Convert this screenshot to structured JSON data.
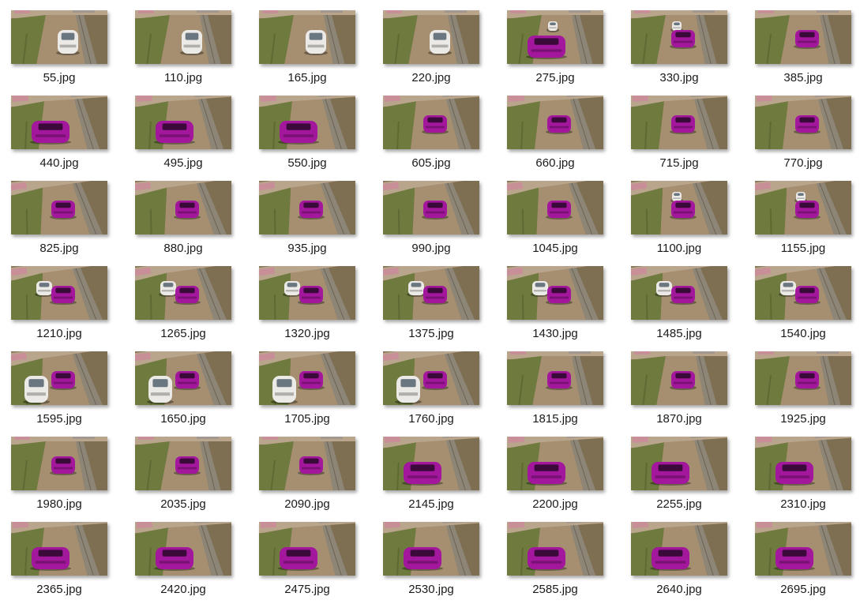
{
  "files": [
    {
      "name": "55.jpg",
      "white_car": "center",
      "pink_car": "none",
      "angle": "rear"
    },
    {
      "name": "110.jpg",
      "white_car": "center",
      "pink_car": "none",
      "angle": "rear"
    },
    {
      "name": "165.jpg",
      "white_car": "center",
      "pink_car": "none",
      "angle": "rear"
    },
    {
      "name": "220.jpg",
      "white_car": "center",
      "pink_car": "none",
      "angle": "rear"
    },
    {
      "name": "275.jpg",
      "white_car": "far",
      "pink_car": "near",
      "angle": "rear"
    },
    {
      "name": "330.jpg",
      "white_car": "far",
      "pink_car": "mid",
      "angle": "rear"
    },
    {
      "name": "385.jpg",
      "white_car": "none",
      "pink_car": "mid",
      "angle": "rear"
    },
    {
      "name": "440.jpg",
      "white_car": "none",
      "pink_car": "near",
      "angle": "side"
    },
    {
      "name": "495.jpg",
      "white_car": "none",
      "pink_car": "near",
      "angle": "side"
    },
    {
      "name": "550.jpg",
      "white_car": "none",
      "pink_car": "near",
      "angle": "side"
    },
    {
      "name": "605.jpg",
      "white_car": "none",
      "pink_car": "mid",
      "angle": "side"
    },
    {
      "name": "660.jpg",
      "white_car": "none",
      "pink_car": "mid",
      "angle": "side"
    },
    {
      "name": "715.jpg",
      "white_car": "none",
      "pink_car": "mid",
      "angle": "side"
    },
    {
      "name": "770.jpg",
      "white_car": "none",
      "pink_car": "mid",
      "angle": "side"
    },
    {
      "name": "825.jpg",
      "white_car": "none",
      "pink_car": "mid",
      "angle": "tilt"
    },
    {
      "name": "880.jpg",
      "white_car": "none",
      "pink_car": "mid",
      "angle": "tilt"
    },
    {
      "name": "935.jpg",
      "white_car": "none",
      "pink_car": "mid",
      "angle": "tilt"
    },
    {
      "name": "990.jpg",
      "white_car": "none",
      "pink_car": "mid",
      "angle": "tilt"
    },
    {
      "name": "1045.jpg",
      "white_car": "none",
      "pink_car": "mid",
      "angle": "tilt"
    },
    {
      "name": "1100.jpg",
      "white_car": "far",
      "pink_car": "mid",
      "angle": "tilt"
    },
    {
      "name": "1155.jpg",
      "white_car": "far",
      "pink_car": "mid",
      "angle": "tilt"
    },
    {
      "name": "1210.jpg",
      "white_car": "left",
      "pink_car": "mid",
      "angle": "tilt"
    },
    {
      "name": "1265.jpg",
      "white_car": "left",
      "pink_car": "mid",
      "angle": "tilt"
    },
    {
      "name": "1320.jpg",
      "white_car": "left",
      "pink_car": "mid",
      "angle": "tilt"
    },
    {
      "name": "1375.jpg",
      "white_car": "left",
      "pink_car": "mid",
      "angle": "tilt"
    },
    {
      "name": "1430.jpg",
      "white_car": "left",
      "pink_car": "mid",
      "angle": "tilt"
    },
    {
      "name": "1485.jpg",
      "white_car": "left",
      "pink_car": "mid",
      "angle": "tilt"
    },
    {
      "name": "1540.jpg",
      "white_car": "left",
      "pink_car": "mid",
      "angle": "tilt"
    },
    {
      "name": "1595.jpg",
      "white_car": "near-left",
      "pink_car": "mid",
      "angle": "tilt"
    },
    {
      "name": "1650.jpg",
      "white_car": "near-left",
      "pink_car": "mid",
      "angle": "tilt"
    },
    {
      "name": "1705.jpg",
      "white_car": "near-left",
      "pink_car": "mid",
      "angle": "tilt"
    },
    {
      "name": "1760.jpg",
      "white_car": "near-left",
      "pink_car": "mid",
      "angle": "tilt"
    },
    {
      "name": "1815.jpg",
      "white_car": "none",
      "pink_car": "mid",
      "angle": "rear"
    },
    {
      "name": "1870.jpg",
      "white_car": "none",
      "pink_car": "mid",
      "angle": "rear"
    },
    {
      "name": "1925.jpg",
      "white_car": "none",
      "pink_car": "mid",
      "angle": "rear"
    },
    {
      "name": "1980.jpg",
      "white_car": "none",
      "pink_car": "mid",
      "angle": "rear"
    },
    {
      "name": "2035.jpg",
      "white_car": "none",
      "pink_car": "mid",
      "angle": "rear"
    },
    {
      "name": "2090.jpg",
      "white_car": "none",
      "pink_car": "mid",
      "angle": "rear"
    },
    {
      "name": "2145.jpg",
      "white_car": "none",
      "pink_car": "near",
      "angle": "side"
    },
    {
      "name": "2200.jpg",
      "white_car": "none",
      "pink_car": "near",
      "angle": "side"
    },
    {
      "name": "2255.jpg",
      "white_car": "none",
      "pink_car": "near",
      "angle": "side"
    },
    {
      "name": "2310.jpg",
      "white_car": "none",
      "pink_car": "near",
      "angle": "side"
    },
    {
      "name": "2365.jpg",
      "white_car": "none",
      "pink_car": "near",
      "angle": "side"
    },
    {
      "name": "2420.jpg",
      "white_car": "none",
      "pink_car": "near",
      "angle": "side"
    },
    {
      "name": "2475.jpg",
      "white_car": "none",
      "pink_car": "near",
      "angle": "side"
    },
    {
      "name": "2530.jpg",
      "white_car": "none",
      "pink_car": "near",
      "angle": "side"
    },
    {
      "name": "2585.jpg",
      "white_car": "none",
      "pink_car": "near",
      "angle": "side"
    },
    {
      "name": "2640.jpg",
      "white_car": "none",
      "pink_car": "near",
      "angle": "side"
    },
    {
      "name": "2695.jpg",
      "white_car": "none",
      "pink_car": "near",
      "angle": "side"
    }
  ],
  "colors": {
    "ground": "#8a7758",
    "field": "#6e7a3e",
    "road": "#a58f70",
    "wall": "#8d8576",
    "pink_car": "#a3179c",
    "white_car": "#eceae6",
    "label": "#1a1a1a"
  }
}
